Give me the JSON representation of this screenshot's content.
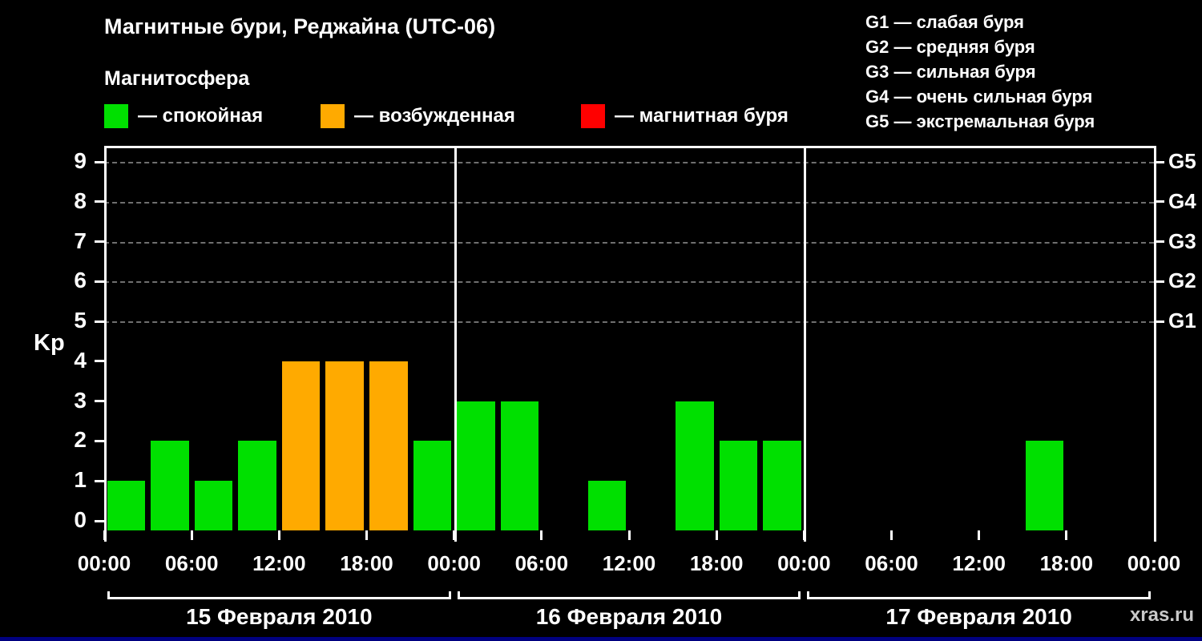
{
  "title": "Магнитные бури, Реджайна (UTC-06)",
  "subtitle": "Магнитосфера",
  "watermark": "xras.ru",
  "legend": {
    "items": [
      {
        "name": "quiet",
        "label": "— спокойная",
        "color": "#00e000"
      },
      {
        "name": "excited",
        "label": "— возбужденная",
        "color": "#ffaa00"
      },
      {
        "name": "storm",
        "label": "— магнитная буря",
        "color": "#ff0000"
      }
    ]
  },
  "storm_scale": {
    "items": [
      "G1 — слабая буря",
      "G2 — средняя буря",
      "G3 — сильная буря",
      "G4 — очень сильная буря",
      "G5 — экстремальная буря"
    ]
  },
  "chart_data": {
    "type": "bar",
    "title": "Магнитные бури, Реджайна (UTC-06)",
    "ylabel": "Kp",
    "ylim": [
      0,
      9
    ],
    "yticks": [
      0,
      1,
      2,
      3,
      4,
      5,
      6,
      7,
      8,
      9
    ],
    "gridlines_at": [
      5,
      6,
      7,
      8,
      9
    ],
    "grid": "dashed horizontal at G-levels only",
    "right_axis": [
      {
        "label": "G1",
        "kp": 5
      },
      {
        "label": "G2",
        "kp": 6
      },
      {
        "label": "G3",
        "kp": 7
      },
      {
        "label": "G4",
        "kp": 8
      },
      {
        "label": "G5",
        "kp": 9
      }
    ],
    "x_tick_labels": [
      "00:00",
      "06:00",
      "12:00",
      "18:00"
    ],
    "x_final_label": "00:00",
    "interval_hours": 3,
    "days": [
      {
        "date": "15 Февраля 2010",
        "values": [
          1,
          2,
          1,
          2,
          4,
          4,
          4,
          2
        ]
      },
      {
        "date": "16 Февраля 2010",
        "values": [
          3,
          3,
          0,
          1,
          0,
          3,
          2,
          2
        ]
      },
      {
        "date": "17 Февраля 2010",
        "values": [
          0,
          0,
          0,
          0,
          0,
          2,
          0,
          0
        ]
      }
    ],
    "color_rules": {
      "quiet": "#00e000",
      "excited": "#ffaa00",
      "storm": "#ff0000",
      "excited_min": 4,
      "storm_min": 5
    }
  }
}
